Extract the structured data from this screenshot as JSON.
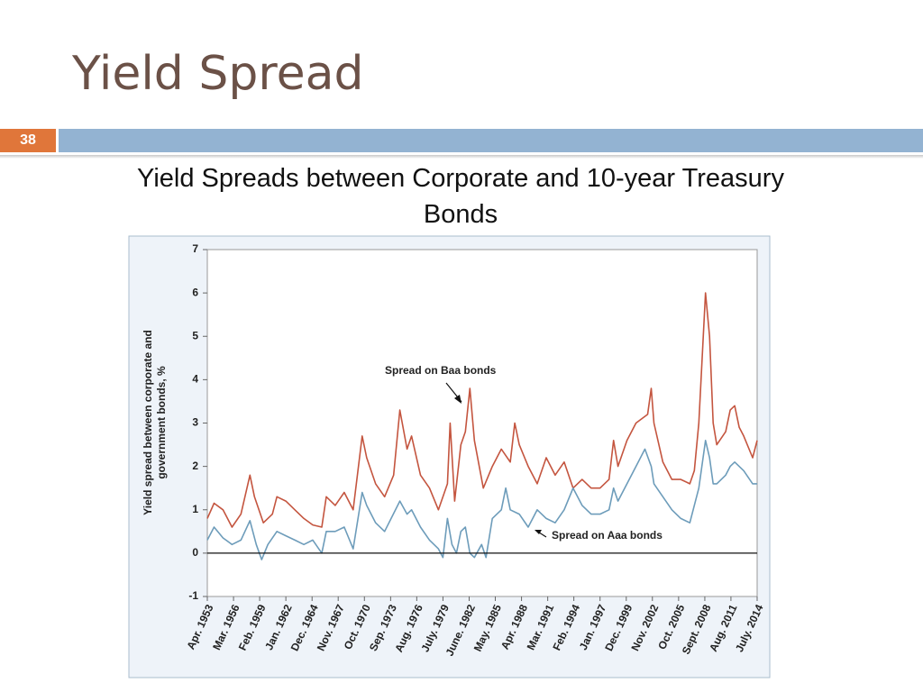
{
  "slide": {
    "title": "Yield Spread",
    "number": "38"
  },
  "chart_data": {
    "type": "line",
    "title": "Yield Spreads between Corporate and 10-year Treasury Bonds",
    "ylabel": "Yield spread between corporate and government bonds, %",
    "annotations": [
      "Spread on Baa bonds",
      "Spread on Aaa bonds"
    ],
    "xlim": [
      1953.25,
      2014.5
    ],
    "xticks": [
      {
        "value": 1953.25,
        "label": "Apr. 1953"
      },
      {
        "value": 1956.17,
        "label": "Mar. 1956"
      },
      {
        "value": 1959.08,
        "label": "Feb. 1959"
      },
      {
        "value": 1962.0,
        "label": "Jan. 1962"
      },
      {
        "value": 1964.92,
        "label": "Dec. 1964"
      },
      {
        "value": 1967.83,
        "label": "Nov. 1967"
      },
      {
        "value": 1970.75,
        "label": "Oct. 1970"
      },
      {
        "value": 1973.67,
        "label": "Sep. 1973"
      },
      {
        "value": 1976.58,
        "label": "Aug. 1976"
      },
      {
        "value": 1979.5,
        "label": "July. 1979"
      },
      {
        "value": 1982.42,
        "label": "June. 1982"
      },
      {
        "value": 1985.33,
        "label": "May. 1985"
      },
      {
        "value": 1988.25,
        "label": "Apr. 1988"
      },
      {
        "value": 1991.17,
        "label": "Mar. 1991"
      },
      {
        "value": 1994.08,
        "label": "Feb. 1994"
      },
      {
        "value": 1997.0,
        "label": "Jan. 1997"
      },
      {
        "value": 1999.92,
        "label": "Dec. 1999"
      },
      {
        "value": 2002.83,
        "label": "Nov. 2002"
      },
      {
        "value": 2005.75,
        "label": "Oct. 2005"
      },
      {
        "value": 2008.67,
        "label": "Sept. 2008"
      },
      {
        "value": 2011.58,
        "label": "Aug. 2011"
      },
      {
        "value": 2014.5,
        "label": "July. 2014"
      }
    ],
    "ylim": [
      -1,
      7
    ],
    "yticks": [
      -1,
      0,
      1,
      2,
      3,
      4,
      5,
      6,
      7
    ],
    "zero_line": true,
    "series": [
      {
        "name": "Baa",
        "color": "#c4553f",
        "x": [
          1953.25,
          1954,
          1955,
          1956,
          1957,
          1958,
          1958.5,
          1959.5,
          1960.5,
          1961,
          1962,
          1963,
          1964,
          1965,
          1966,
          1966.5,
          1967.5,
          1968.5,
          1969.5,
          1970.5,
          1971,
          1972,
          1973,
          1974,
          1974.7,
          1975.5,
          1976,
          1977,
          1978,
          1979,
          1980,
          1980.3,
          1980.8,
          1981.5,
          1982,
          1982.5,
          1983,
          1984,
          1985,
          1986,
          1987,
          1987.5,
          1988,
          1989,
          1990,
          1991,
          1992,
          1993,
          1994,
          1995,
          1996,
          1997,
          1998,
          1998.5,
          1999,
          2000,
          2001,
          2002.3,
          2002.7,
          2003,
          2004,
          2005,
          2006,
          2007,
          2007.5,
          2008,
          2008.75,
          2009.2,
          2009.6,
          2010,
          2011,
          2011.5,
          2012,
          2012.5,
          2013,
          2014,
          2014.5
        ],
        "values": [
          0.8,
          1.15,
          1.0,
          0.6,
          0.9,
          1.8,
          1.3,
          0.7,
          0.9,
          1.3,
          1.2,
          1.0,
          0.8,
          0.65,
          0.6,
          1.3,
          1.1,
          1.4,
          1.0,
          2.7,
          2.2,
          1.6,
          1.3,
          1.8,
          3.3,
          2.4,
          2.7,
          1.8,
          1.5,
          1.0,
          1.6,
          3.0,
          1.2,
          2.5,
          2.8,
          3.8,
          2.6,
          1.5,
          2.0,
          2.4,
          2.1,
          3.0,
          2.5,
          2.0,
          1.6,
          2.2,
          1.8,
          2.1,
          1.5,
          1.7,
          1.5,
          1.5,
          1.7,
          2.6,
          2.0,
          2.6,
          3.0,
          3.2,
          3.8,
          3.0,
          2.1,
          1.7,
          1.7,
          1.6,
          1.9,
          3.0,
          6.0,
          5.0,
          3.0,
          2.5,
          2.8,
          3.3,
          3.4,
          2.9,
          2.7,
          2.2,
          2.6
        ]
      },
      {
        "name": "Aaa",
        "color": "#6d9cba",
        "x": [
          1953.25,
          1954,
          1955,
          1956,
          1957,
          1958,
          1958.7,
          1959.3,
          1960,
          1961,
          1962,
          1963,
          1964,
          1965,
          1966,
          1966.5,
          1967.5,
          1968.5,
          1969.5,
          1970.5,
          1971,
          1972,
          1973,
          1974.7,
          1975.5,
          1976,
          1977,
          1978,
          1979,
          1979.5,
          1980,
          1980.5,
          1981,
          1981.5,
          1982,
          1982.5,
          1983,
          1983.8,
          1984.3,
          1985,
          1986,
          1986.5,
          1987,
          1988,
          1989,
          1990,
          1991,
          1992,
          1993,
          1994,
          1995,
          1996,
          1997,
          1998,
          1998.5,
          1999,
          2000,
          2001,
          2002,
          2002.7,
          2003,
          2004,
          2005,
          2006,
          2007,
          2008,
          2008.75,
          2009.2,
          2009.6,
          2010,
          2011,
          2011.5,
          2012,
          2013,
          2014,
          2014.5
        ],
        "values": [
          0.3,
          0.6,
          0.35,
          0.2,
          0.3,
          0.75,
          0.2,
          -0.15,
          0.2,
          0.5,
          0.4,
          0.3,
          0.2,
          0.3,
          0.0,
          0.5,
          0.5,
          0.6,
          0.1,
          1.4,
          1.1,
          0.7,
          0.5,
          1.2,
          0.9,
          1.0,
          0.6,
          0.3,
          0.1,
          -0.1,
          0.8,
          0.2,
          0.0,
          0.5,
          0.6,
          0.0,
          -0.1,
          0.2,
          -0.1,
          0.8,
          1.0,
          1.5,
          1.0,
          0.9,
          0.6,
          1.0,
          0.8,
          0.7,
          1.0,
          1.5,
          1.1,
          0.9,
          0.9,
          1.0,
          1.5,
          1.2,
          1.6,
          2.0,
          2.4,
          2.0,
          1.6,
          1.3,
          1.0,
          0.8,
          0.7,
          1.5,
          2.6,
          2.2,
          1.6,
          1.6,
          1.8,
          2.0,
          2.1,
          1.9,
          1.6,
          1.6
        ]
      }
    ]
  }
}
